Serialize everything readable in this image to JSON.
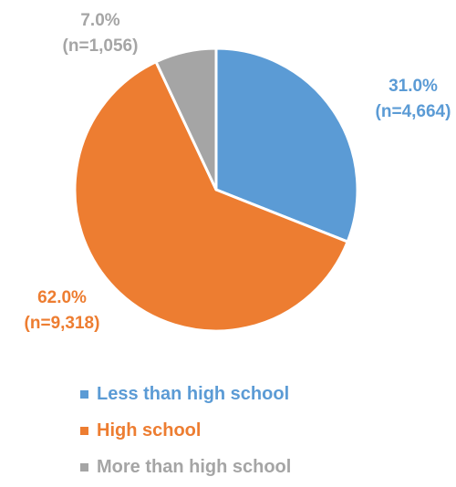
{
  "chart_data": {
    "type": "pie",
    "title": "",
    "series": [
      {
        "name": "",
        "slices": [
          {
            "label": "Less than high school",
            "value": 31.0,
            "pct_label": "31.0%",
            "n_label": "(n=4,664)",
            "color": "#5B9BD5"
          },
          {
            "label": "High school",
            "value": 62.0,
            "pct_label": "62.0%",
            "n_label": "(n=9,318)",
            "color": "#ED7D31"
          },
          {
            "label": "More than high school",
            "value": 7.0,
            "pct_label": "7.0%",
            "n_label": "(n=1,056)",
            "color": "#A5A5A5"
          }
        ]
      }
    ],
    "start_angle": "12 o'clock",
    "direction": "clockwise",
    "legend_position": "bottom"
  }
}
